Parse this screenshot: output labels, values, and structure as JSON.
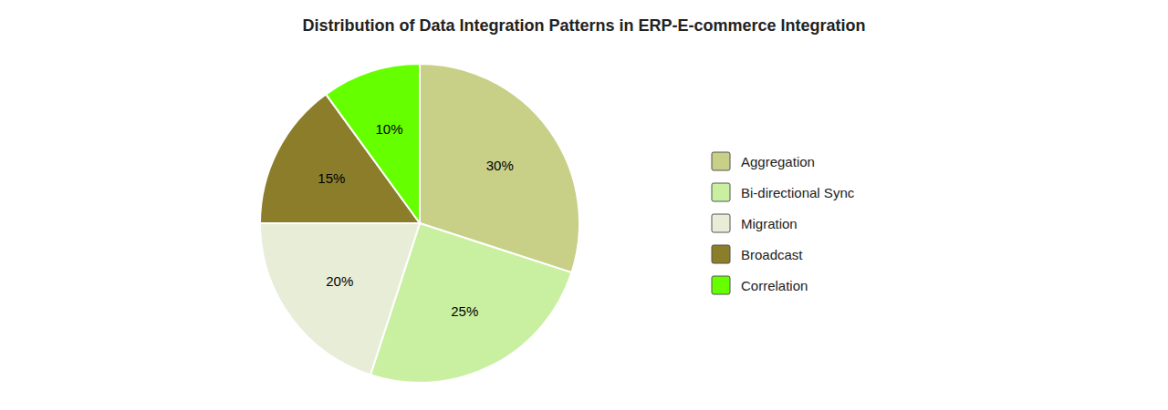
{
  "chart_data": {
    "type": "pie",
    "title": "Distribution of Data Integration Patterns in ERP-E-commerce Integration",
    "categories": [
      "Aggregation",
      "Bi-directional Sync",
      "Migration",
      "Broadcast",
      "Correlation"
    ],
    "values": [
      30,
      25,
      20,
      15,
      10
    ],
    "value_labels": [
      "30%",
      "25%",
      "20%",
      "15%",
      "10%"
    ],
    "colors": [
      "#c8cf87",
      "#c8f0a0",
      "#e8edd8",
      "#8b7d2a",
      "#66ff00"
    ],
    "data_labels": true,
    "legend": "right"
  }
}
